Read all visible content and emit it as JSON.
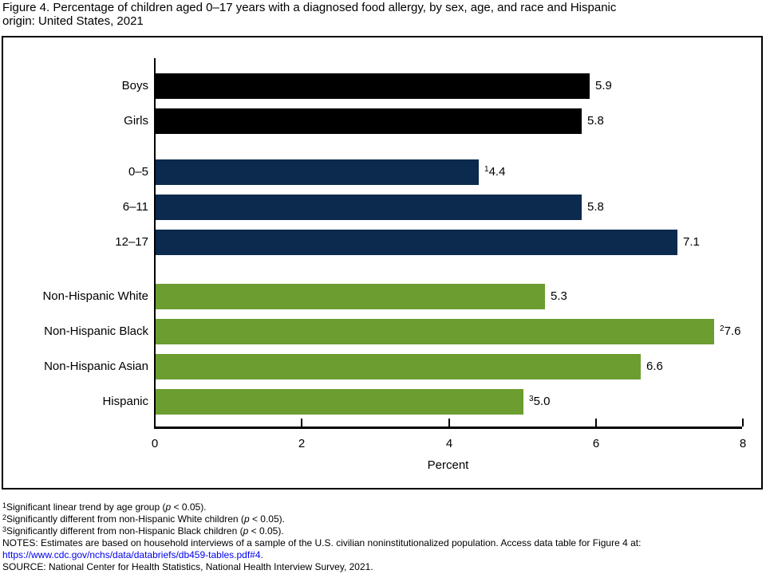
{
  "title": {
    "lines": [
      "Figure 4. Percentage of children aged 0–17 years with a diagnosed food allergy, by sex, age, and race and Hispanic",
      "origin: United States, 2021"
    ]
  },
  "chart_data": {
    "type": "bar",
    "orientation": "horizontal",
    "title": "Percentage of children aged 0–17 years with a diagnosed food allergy, by sex, age, and race and Hispanic origin: United States, 2021",
    "xlabel": "Percent",
    "ylabel": "",
    "xlim": [
      0,
      8
    ],
    "xticks": [
      "0",
      "2",
      "4",
      "6",
      "8"
    ],
    "grid": false,
    "legend": false,
    "groups": [
      {
        "name": "sex",
        "color": "#000000",
        "bars": [
          {
            "label": "Boys",
            "value": 5.9,
            "value_label": "5.9",
            "sup": ""
          },
          {
            "label": "Girls",
            "value": 5.8,
            "value_label": "5.8",
            "sup": ""
          }
        ]
      },
      {
        "name": "age",
        "color": "#0C2A4E",
        "bars": [
          {
            "label": "0–5",
            "value": 4.4,
            "value_label": "4.4",
            "sup": "1"
          },
          {
            "label": "6–11",
            "value": 5.8,
            "value_label": "5.8",
            "sup": ""
          },
          {
            "label": "12–17",
            "value": 7.1,
            "value_label": "7.1",
            "sup": ""
          }
        ]
      },
      {
        "name": "race-hispanic-origin",
        "color": "#6C9D31",
        "bars": [
          {
            "label": "Non-Hispanic White",
            "value": 5.3,
            "value_label": "5.3",
            "sup": ""
          },
          {
            "label": "Non-Hispanic Black",
            "value": 7.6,
            "value_label": "7.6",
            "sup": "2"
          },
          {
            "label": "Non-Hispanic Asian",
            "value": 6.6,
            "value_label": "6.6",
            "sup": ""
          },
          {
            "label": "Hispanic",
            "value": 5.0,
            "value_label": "5.0",
            "sup": "3"
          }
        ]
      }
    ]
  },
  "footer": {
    "footnotes": [
      {
        "sup": "1",
        "text_before_p": "Significant linear trend by age group (",
        "p_italic": "p",
        "text_after_p": " < 0.05)."
      },
      {
        "sup": "2",
        "text_before_p": "Significantly different from non-Hispanic White children (",
        "p_italic": "p",
        "text_after_p": " < 0.05)."
      },
      {
        "sup": "3",
        "text_before_p": "Significantly different from non-Hispanic Black children (",
        "p_italic": "p",
        "text_after_p": " < 0.05)."
      }
    ],
    "notes": "NOTES: Estimates are based on household interviews of a sample of the U.S. civilian noninstitutionalized population. Access data table for Figure 4 at:",
    "link_text": "https://www.cdc.gov/nchs/data/databriefs/db459-tables.pdf#4.",
    "source": "SOURCE: National Center for Health Statistics, National Health Interview Survey, 2021."
  },
  "colors": {
    "bar_sex": "#000000",
    "bar_age": "#0C2A4E",
    "bar_race": "#6C9D31",
    "link": "#0000EE",
    "axis": "#000000"
  }
}
